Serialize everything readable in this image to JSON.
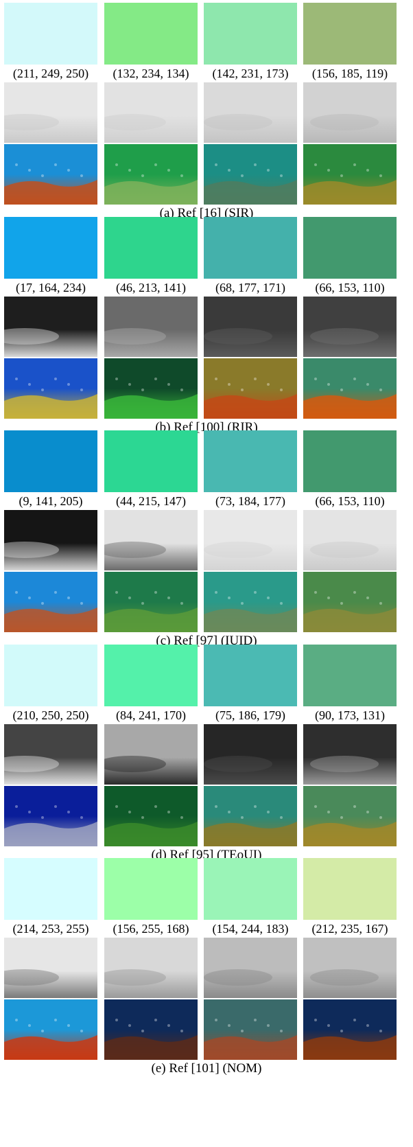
{
  "groups": [
    {
      "caption": "(a)   Ref [16] (SIR)",
      "cells": [
        {
          "rgb_text": "(211, 249, 250)",
          "swatch_color": "#d3f9fa",
          "tmap_base": "#e6e6e6",
          "tmap_dark": "#c9c9c9",
          "photo_top": "#1b8fd6",
          "photo_bottom": "#c0501f"
        },
        {
          "rgb_text": "(132, 234, 134)",
          "swatch_color": "#84ea86",
          "tmap_base": "#e2e2e2",
          "tmap_dark": "#cfcfcf",
          "photo_top": "#1f9e4a",
          "photo_bottom": "#7db25a"
        },
        {
          "rgb_text": "(142, 231, 173)",
          "swatch_color": "#8ee7ad",
          "tmap_base": "#dadada",
          "tmap_dark": "#c4c4c4",
          "photo_top": "#1c8e85",
          "photo_bottom": "#4f7d5f"
        },
        {
          "rgb_text": "(156, 185, 119)",
          "swatch_color": "#9cb977",
          "tmap_base": "#d2d2d2",
          "tmap_dark": "#b8b8b8",
          "photo_top": "#2b8a3e",
          "photo_bottom": "#9a8a2a"
        }
      ]
    },
    {
      "caption": "(b)   Ref [100] (RIR)",
      "cells": [
        {
          "rgb_text": "(17, 164, 234)",
          "swatch_color": "#11a4ea",
          "tmap_base": "#1e1e1e",
          "tmap_dark": "#d8d8d8",
          "photo_top": "#1a52c9",
          "photo_bottom": "#c7b13a"
        },
        {
          "rgb_text": "(46, 213, 141)",
          "swatch_color": "#2ed58d",
          "tmap_base": "#6a6a6a",
          "tmap_dark": "#a8a8a8",
          "photo_top": "#0f4a2a",
          "photo_bottom": "#38b43a"
        },
        {
          "rgb_text": "(68, 177, 171)",
          "swatch_color": "#44b1ab",
          "tmap_base": "#3a3a3a",
          "tmap_dark": "#5a5a5a",
          "photo_top": "#8a7a2a",
          "photo_bottom": "#c24a16"
        },
        {
          "rgb_text": "(66, 153, 110)",
          "swatch_color": "#42996e",
          "tmap_base": "#404040",
          "tmap_dark": "#6e6e6e",
          "photo_top": "#3a8a6a",
          "photo_bottom": "#d25a10"
        }
      ]
    },
    {
      "caption": "(c)   Ref [97] (IUID)",
      "cells": [
        {
          "rgb_text": "(9, 141, 205)",
          "swatch_color": "#098dcd",
          "tmap_base": "#151515",
          "tmap_dark": "#d6d6d6",
          "photo_top": "#1c88d8",
          "photo_bottom": "#b8562a"
        },
        {
          "rgb_text": "(44, 215, 147)",
          "swatch_color": "#2cd793",
          "tmap_base": "#e2e2e2",
          "tmap_dark": "#6a6a6a",
          "photo_top": "#1e7a4a",
          "photo_bottom": "#5a9a3a"
        },
        {
          "rgb_text": "(73, 184, 177)",
          "swatch_color": "#49b8b1",
          "tmap_base": "#e8e8e8",
          "tmap_dark": "#d4d4d4",
          "photo_top": "#2a9a8a",
          "photo_bottom": "#6a8a5a"
        },
        {
          "rgb_text": "(66, 153, 110)",
          "swatch_color": "#42996e",
          "tmap_base": "#e4e4e4",
          "tmap_dark": "#cacaca",
          "photo_top": "#4a8a4a",
          "photo_bottom": "#8a8a3a"
        }
      ]
    },
    {
      "caption": "(d)   Ref [95] (TEoUI)",
      "cells": [
        {
          "rgb_text": "(210, 250, 250)",
          "swatch_color": "#d2fafa",
          "tmap_base": "#444444",
          "tmap_dark": "#e0e0e0",
          "photo_top": "#0a1e9a",
          "photo_bottom": "#9aa0c0"
        },
        {
          "rgb_text": "(84, 241, 170)",
          "swatch_color": "#54f1aa",
          "tmap_base": "#a8a8a8",
          "tmap_dark": "#2a2a2a",
          "photo_top": "#0e5a2a",
          "photo_bottom": "#3a8a2a"
        },
        {
          "rgb_text": "(75, 186, 179)",
          "swatch_color": "#4bbab3",
          "tmap_base": "#262626",
          "tmap_dark": "#4a4a4a",
          "photo_top": "#2a8a7a",
          "photo_bottom": "#8a7a2a"
        },
        {
          "rgb_text": "(90, 173, 131)",
          "swatch_color": "#5aad83",
          "tmap_base": "#2e2e2e",
          "tmap_dark": "#9a9a9a",
          "photo_top": "#4a8a5a",
          "photo_bottom": "#a0882a"
        }
      ]
    },
    {
      "caption": "(e)   Ref [101] (NOM)",
      "cells": [
        {
          "rgb_text": "(214, 253, 255)",
          "swatch_color": "#d6fdff",
          "tmap_base": "#e6e6e6",
          "tmap_dark": "#7a7a7a",
          "photo_top": "#1c98d8",
          "photo_bottom": "#c83a14"
        },
        {
          "rgb_text": "(156, 255, 168)",
          "swatch_color": "#9cffa8",
          "tmap_base": "#d8d8d8",
          "tmap_dark": "#9a9a9a",
          "photo_top": "#0e2a5a",
          "photo_bottom": "#5a2a1a"
        },
        {
          "rgb_text": "(154, 244, 183)",
          "swatch_color": "#9af4b7",
          "tmap_base": "#bcbcbc",
          "tmap_dark": "#8a8a8a",
          "photo_top": "#3a6a6a",
          "photo_bottom": "#a04a2a"
        },
        {
          "rgb_text": "(212, 235, 167)",
          "swatch_color": "#d4eba7",
          "tmap_base": "#c0c0c0",
          "tmap_dark": "#8e8e8e",
          "photo_top": "#0e2a5a",
          "photo_bottom": "#8a3a10"
        }
      ]
    }
  ]
}
